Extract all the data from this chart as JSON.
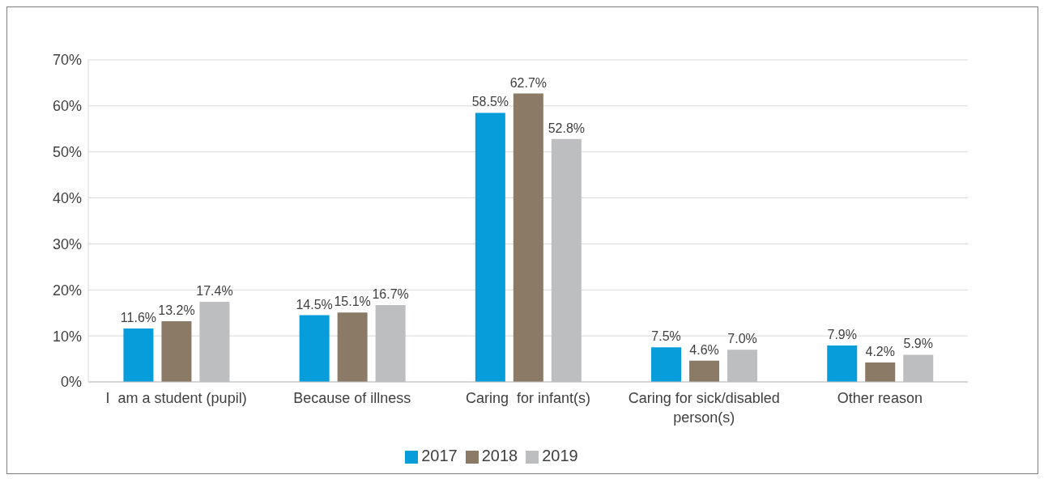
{
  "chart_data": {
    "type": "bar",
    "categories": [
      "I  am a student (pupil)",
      "Because of illness",
      "Caring  for infant(s)",
      "Caring for sick/disabled person(s)",
      "Other reason"
    ],
    "series": [
      {
        "name": "2017",
        "color": "#069dda",
        "values": [
          11.6,
          14.5,
          58.5,
          7.5,
          7.9
        ],
        "value_labels": [
          "11.6%",
          "14.5%",
          "58.5%",
          "7.5%",
          "7.9%"
        ]
      },
      {
        "name": "2018",
        "color": "#8b7a66",
        "values": [
          13.2,
          15.1,
          62.7,
          4.6,
          4.2
        ],
        "value_labels": [
          "13.2%",
          "15.1%",
          "62.7%",
          "4.6%",
          "4.2%"
        ]
      },
      {
        "name": "2019",
        "color": "#bdbec0",
        "values": [
          17.4,
          16.7,
          52.8,
          7.0,
          5.9
        ],
        "value_labels": [
          "17.4%",
          "16.7%",
          "52.8%",
          "7.0%",
          "5.9%"
        ]
      }
    ],
    "ylim": [
      0,
      70
    ],
    "yticks": [
      {
        "value": 0,
        "label": "0%"
      },
      {
        "value": 10,
        "label": "10%"
      },
      {
        "value": 20,
        "label": "20%"
      },
      {
        "value": 30,
        "label": "30%"
      },
      {
        "value": 40,
        "label": "40%"
      },
      {
        "value": 50,
        "label": "50%"
      },
      {
        "value": 60,
        "label": "60%"
      },
      {
        "value": 70,
        "label": "70%"
      }
    ],
    "grid": "y",
    "legend": "bottom"
  }
}
